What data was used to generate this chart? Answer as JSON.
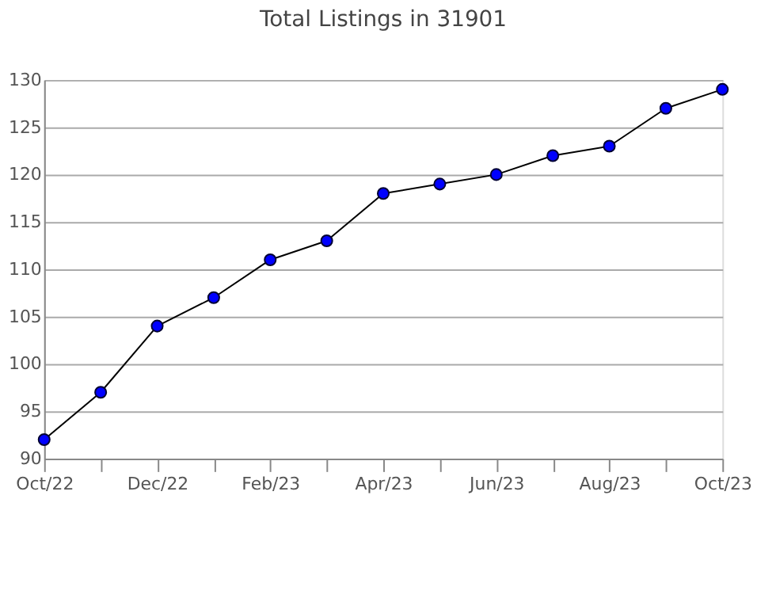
{
  "chart_data": {
    "type": "line",
    "title": "Total Listings in 31901",
    "categories": [
      "Oct/22",
      null,
      "Dec/22",
      null,
      "Feb/23",
      null,
      "Apr/23",
      null,
      "Jun/23",
      null,
      "Aug/23",
      null,
      "Oct/23"
    ],
    "series": [
      {
        "color": "#0000ff",
        "values": [
          92,
          97,
          104,
          107,
          111,
          113,
          118,
          119,
          120,
          122,
          123,
          127,
          129
        ]
      }
    ],
    "ylim": [
      90,
      130
    ],
    "yticks": [
      90,
      95,
      100,
      105,
      110,
      115,
      120,
      125,
      130
    ],
    "grid": "y",
    "marker": "circle",
    "line_style": "solid"
  }
}
